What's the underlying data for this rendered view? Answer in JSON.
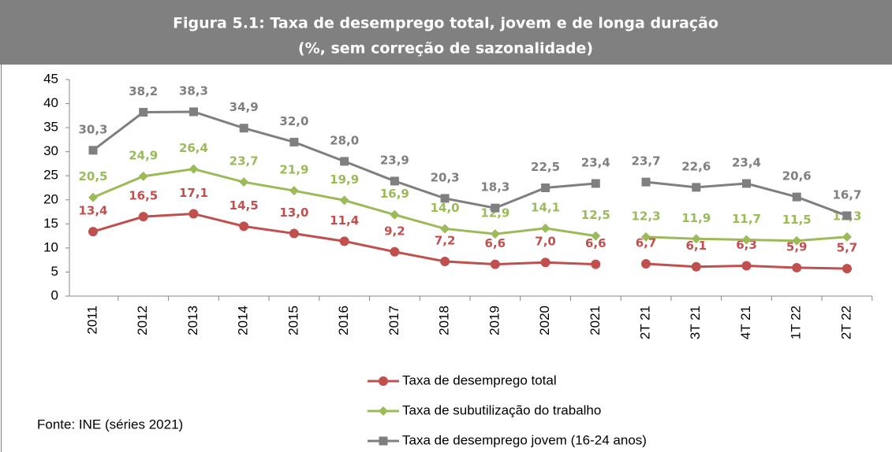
{
  "chart_data": {
    "type": "line",
    "title": "Figura 5.1: Taxa de desemprego total, jovem e de longa duração",
    "subtitle": "(%, sem correção de sazonalidade)",
    "source": "Fonte: INE (séries 2021)",
    "categories": [
      "2011",
      "2012",
      "2013",
      "2014",
      "2015",
      "2016",
      "2017",
      "2018",
      "2019",
      "2020",
      "2021",
      "2T 21",
      "3T 21",
      "4T 21",
      "1T 22",
      "2T 22"
    ],
    "line_breaks": [
      10
    ],
    "ylim": [
      0,
      45
    ],
    "yticks": [
      0,
      5,
      10,
      15,
      20,
      25,
      30,
      35,
      40,
      45
    ],
    "grid": false,
    "legend": "bottom",
    "series": [
      {
        "name": "Taxa de desemprego total",
        "color": "#c0504d",
        "marker": "circle",
        "values": [
          13.4,
          16.5,
          17.1,
          14.5,
          13.0,
          11.4,
          9.2,
          7.2,
          6.6,
          7.0,
          6.6,
          6.7,
          6.1,
          6.3,
          5.9,
          5.7
        ],
        "value_labels": [
          "13,4",
          "16,5",
          "17,1",
          "14,5",
          "13,0",
          "11,4",
          "9,2",
          "7,2",
          "6,6",
          "7,0",
          "6,6",
          "6,7",
          "6,1",
          "6,3",
          "5,9",
          "5,7"
        ]
      },
      {
        "name": "Taxa de subutilização do trabalho",
        "color": "#9bbb59",
        "marker": "diamond",
        "values": [
          20.5,
          24.9,
          26.4,
          23.7,
          21.9,
          19.9,
          16.9,
          14.0,
          12.9,
          14.1,
          12.5,
          12.3,
          11.9,
          11.7,
          11.5,
          12.3
        ],
        "value_labels": [
          "20,5",
          "24,9",
          "26,4",
          "23,7",
          "21,9",
          "19,9",
          "16,9",
          "14,0",
          "12,9",
          "14,1",
          "12,5",
          "12,3",
          "11,9",
          "11,7",
          "11,5",
          "12,3"
        ]
      },
      {
        "name": "Taxa de desemprego jovem (16-24 anos)",
        "color": "#7f7f7f",
        "marker": "square",
        "values": [
          30.3,
          38.2,
          38.3,
          34.9,
          32.0,
          28.0,
          23.9,
          20.3,
          18.3,
          22.5,
          23.4,
          23.7,
          22.6,
          23.4,
          20.6,
          16.7
        ],
        "value_labels": [
          "30,3",
          "38,2",
          "38,3",
          "34,9",
          "32,0",
          "28,0",
          "23,9",
          "20,3",
          "18,3",
          "22,5",
          "23,4",
          "23,7",
          "22,6",
          "23,4",
          "20,6",
          "16,7"
        ]
      }
    ]
  }
}
